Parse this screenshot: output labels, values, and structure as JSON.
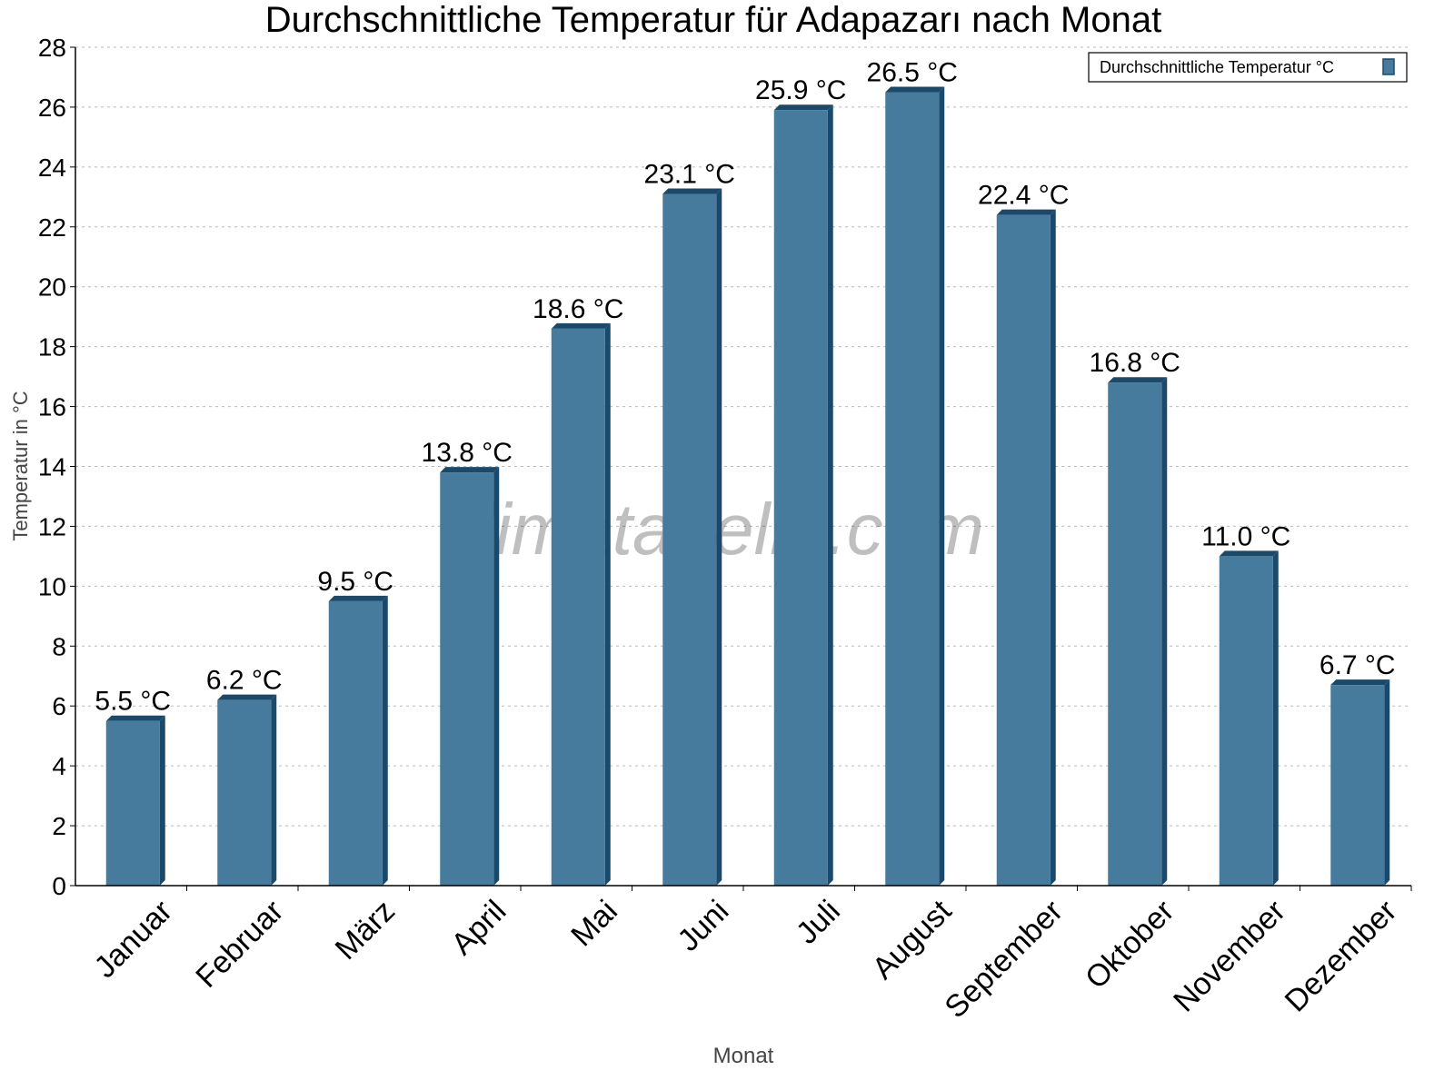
{
  "chart_data": {
    "type": "bar",
    "title": "Durchschnittliche Temperatur für Adapazarı nach Monat",
    "xlabel": "Monat",
    "ylabel": "Temperatur in °C",
    "categories": [
      "Januar",
      "Februar",
      "März",
      "April",
      "Mai",
      "Juni",
      "Juli",
      "August",
      "September",
      "Oktober",
      "November",
      "Dezember"
    ],
    "series": [
      {
        "name": "Durchschnittliche Temperatur °C",
        "values": [
          5.5,
          6.2,
          9.5,
          13.8,
          18.6,
          23.1,
          25.9,
          26.5,
          22.4,
          16.8,
          11.0,
          6.7
        ],
        "labels": [
          "5.5 °C",
          "6.2 °C",
          "9.5 °C",
          "13.8 °C",
          "18.6 °C",
          "23.1 °C",
          "25.9 °C",
          "26.5 °C",
          "22.4 °C",
          "16.8 °C",
          "11.0 °C",
          "6.7 °C"
        ]
      }
    ],
    "ylim": [
      0,
      28
    ],
    "yticks": [
      0,
      2,
      4,
      6,
      8,
      10,
      12,
      14,
      16,
      18,
      20,
      22,
      24,
      26,
      28
    ],
    "grid": true,
    "legend_position": "top-right",
    "colors": {
      "bar_front": "#467b9d",
      "bar_side": "#1a4a6b"
    },
    "watermark": "klimatabelle.com"
  }
}
